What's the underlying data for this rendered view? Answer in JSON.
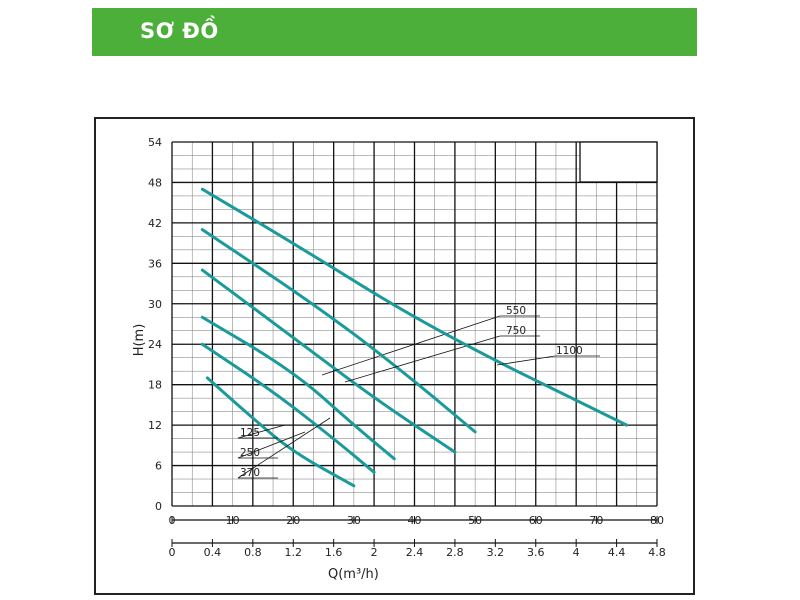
{
  "header": {
    "title": "SƠ ĐỒ"
  },
  "chart_data": {
    "type": "line",
    "xlabel": "Q(m³/h)",
    "xlabel_secondary": "",
    "ylabel": "H(m)",
    "xlim": [
      0,
      4.8
    ],
    "ylim": [
      0,
      54
    ],
    "xlim_secondary": [
      0,
      80
    ],
    "x_ticks": [
      "0",
      "0.4",
      "0.8",
      "1.2",
      "1.6",
      "2",
      "2.4",
      "2.8",
      "3.2",
      "3.6",
      "4",
      "4.4",
      "4.8"
    ],
    "x_ticks_secondary": [
      "0",
      "10",
      "20",
      "30",
      "40",
      "50",
      "60",
      "70",
      "80"
    ],
    "y_ticks": [
      "0",
      "6",
      "12",
      "18",
      "24",
      "30",
      "36",
      "42",
      "48",
      "54"
    ],
    "grid": true,
    "series_color": "#1a9a9a",
    "series": [
      {
        "name": "125",
        "x": [
          0.35,
          0.8,
          1.2,
          1.8
        ],
        "y": [
          19,
          13,
          8,
          3
        ]
      },
      {
        "name": "250",
        "x": [
          0.3,
          1.0,
          1.6,
          2.0
        ],
        "y": [
          24,
          17,
          10,
          5
        ]
      },
      {
        "name": "370",
        "x": [
          0.3,
          1.2,
          1.8,
          2.2
        ],
        "y": [
          28,
          20,
          12,
          7
        ]
      },
      {
        "name": "550",
        "x": [
          0.3,
          1.2,
          2.0,
          2.8
        ],
        "y": [
          35,
          25,
          16,
          8
        ]
      },
      {
        "name": "750",
        "x": [
          0.3,
          1.4,
          2.2,
          3.0
        ],
        "y": [
          41,
          30,
          21,
          11
        ]
      },
      {
        "name": "1100",
        "x": [
          0.3,
          1.2,
          2.6,
          4.5
        ],
        "y": [
          47,
          39,
          26,
          12
        ]
      }
    ]
  }
}
